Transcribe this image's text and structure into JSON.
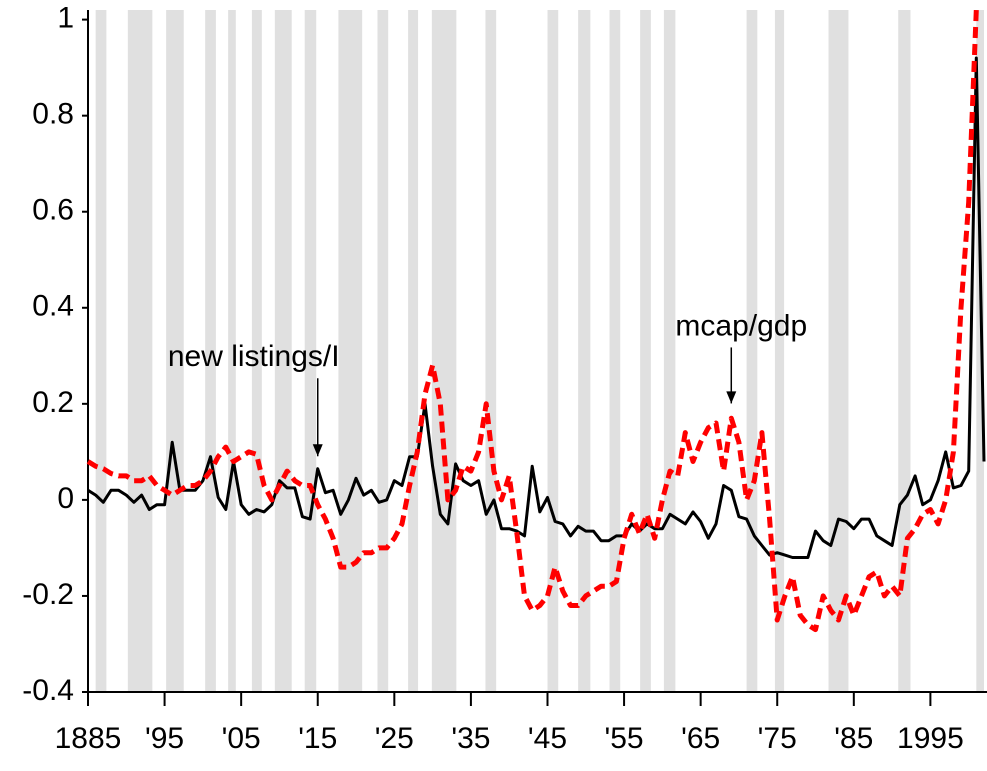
{
  "chart_data": {
    "type": "line",
    "x": [
      1885,
      1886,
      1887,
      1888,
      1889,
      1890,
      1891,
      1892,
      1893,
      1894,
      1895,
      1896,
      1897,
      1898,
      1899,
      1900,
      1901,
      1902,
      1903,
      1904,
      1905,
      1906,
      1907,
      1908,
      1909,
      1910,
      1911,
      1912,
      1913,
      1914,
      1915,
      1916,
      1917,
      1918,
      1919,
      1920,
      1921,
      1922,
      1923,
      1924,
      1925,
      1926,
      1927,
      1928,
      1929,
      1930,
      1931,
      1932,
      1933,
      1934,
      1935,
      1936,
      1937,
      1938,
      1939,
      1940,
      1941,
      1942,
      1943,
      1944,
      1945,
      1946,
      1947,
      1948,
      1949,
      1950,
      1951,
      1952,
      1953,
      1954,
      1955,
      1956,
      1957,
      1958,
      1959,
      1960,
      1961,
      1962,
      1963,
      1964,
      1965,
      1966,
      1967,
      1968,
      1969,
      1970,
      1971,
      1972,
      1973,
      1974,
      1975,
      1976,
      1977,
      1978,
      1979,
      1980,
      1981,
      1982,
      1983,
      1984,
      1985,
      1986,
      1987,
      1988,
      1989,
      1990,
      1991,
      1992,
      1993,
      1994,
      1995,
      1996,
      1997,
      1998,
      1999,
      2000,
      2001,
      2002
    ],
    "series": [
      {
        "color": "#000000",
        "dashed": false,
        "values": [
          0.02,
          0.01,
          -0.005,
          0.02,
          0.02,
          0.01,
          -0.005,
          0.01,
          -0.02,
          -0.01,
          -0.01,
          0.12,
          0.02,
          0.02,
          0.02,
          0.04,
          0.09,
          0.005,
          -0.02,
          0.08,
          -0.01,
          -0.03,
          -0.02,
          -0.025,
          -0.01,
          0.04,
          0.025,
          0.025,
          -0.035,
          -0.04,
          0.065,
          0.015,
          0.02,
          -0.03,
          0,
          0.045,
          0.01,
          0.02,
          -0.005,
          0,
          0.04,
          0.03,
          0.09,
          0.09,
          0.2,
          0.07,
          -0.03,
          -0.05,
          0.075,
          0.04,
          0.03,
          0.04,
          -0.03,
          0,
          -0.06,
          -0.06,
          -0.065,
          -0.075,
          0.07,
          -0.025,
          0.005,
          -0.045,
          -0.05,
          -0.075,
          -0.055,
          -0.065,
          -0.065,
          -0.085,
          -0.085,
          -0.075,
          -0.075,
          -0.05,
          -0.065,
          -0.05,
          -0.06,
          -0.06,
          -0.03,
          -0.04,
          -0.05,
          -0.025,
          -0.045,
          -0.08,
          -0.05,
          0.03,
          0.02,
          -0.035,
          -0.04,
          -0.075,
          -0.095,
          -0.115,
          -0.11,
          -0.115,
          -0.12,
          -0.12,
          -0.12,
          -0.065,
          -0.085,
          -0.095,
          -0.04,
          -0.045,
          -0.06,
          -0.04,
          -0.04,
          -0.075,
          -0.085,
          -0.095,
          -0.01,
          0.01,
          0.05,
          -0.01,
          0,
          0.04,
          0.1,
          0.025,
          0.03,
          0.06,
          0.92,
          0.08
        ]
      },
      {
        "color": "#ff0000",
        "dashed": true,
        "values": [
          0.08,
          0.07,
          0.065,
          0.055,
          0.05,
          0.05,
          0.04,
          0.04,
          0.05,
          0.03,
          0.02,
          0.01,
          0.02,
          0.03,
          0.03,
          0.04,
          0.06,
          0.09,
          0.11,
          0.08,
          0.09,
          0.1,
          0.095,
          0.03,
          0,
          0.03,
          0.06,
          0.04,
          0.03,
          0.03,
          -0.01,
          -0.04,
          -0.08,
          -0.14,
          -0.14,
          -0.13,
          -0.11,
          -0.11,
          -0.1,
          -0.1,
          -0.08,
          -0.05,
          0.03,
          0.1,
          0.22,
          0.28,
          0.2,
          0,
          0.02,
          0.07,
          0.06,
          0.1,
          0.2,
          0.06,
          0,
          0.05,
          -0.07,
          -0.2,
          -0.23,
          -0.22,
          -0.2,
          -0.14,
          -0.19,
          -0.22,
          -0.22,
          -0.2,
          -0.19,
          -0.18,
          -0.18,
          -0.17,
          -0.08,
          -0.03,
          -0.07,
          -0.03,
          -0.08,
          0,
          0.06,
          0.05,
          0.14,
          0.08,
          0.12,
          0.15,
          0.16,
          0.06,
          0.17,
          0.12,
          0,
          0.04,
          0.14,
          -0.04,
          -0.25,
          -0.2,
          -0.16,
          -0.24,
          -0.26,
          -0.27,
          -0.2,
          -0.23,
          -0.25,
          -0.2,
          -0.24,
          -0.2,
          -0.16,
          -0.15,
          -0.2,
          -0.18,
          -0.2,
          -0.08,
          -0.06,
          -0.03,
          -0.02,
          -0.05,
          0,
          0.1,
          0.4,
          0.62,
          1.02,
          null
        ]
      }
    ],
    "shaded_periods": [
      [
        1886,
        1887.4
      ],
      [
        1890.2,
        1893.4
      ],
      [
        1895.2,
        1897.5
      ],
      [
        1900.3,
        1901.7
      ],
      [
        1903.3,
        1904.3
      ],
      [
        1906.4,
        1907.7
      ],
      [
        1909.4,
        1911.6
      ],
      [
        1913.3,
        1914.8
      ],
      [
        1917.7,
        1920.8
      ],
      [
        1922.8,
        1924.2
      ],
      [
        1926.8,
        1928.1
      ],
      [
        1929.9,
        1933.1
      ],
      [
        1936.9,
        1938.3
      ],
      [
        1945,
        1946.4
      ],
      [
        1949,
        1950.6
      ],
      [
        1953.1,
        1954.5
      ],
      [
        1957.1,
        1958.5
      ],
      [
        1960.2,
        1961.7
      ],
      [
        1971,
        1972.4
      ],
      [
        1974.7,
        1975.9
      ],
      [
        1981.7,
        1984.3
      ],
      [
        1990.8,
        1992.4
      ],
      [
        2001,
        2002
      ]
    ],
    "shade_color": "#e0e0e0",
    "annotations": [
      {
        "text": "new listings/I",
        "x": 1915,
        "y": 0.07
      },
      {
        "text": "mcap/gdp",
        "x": 1969,
        "y": 0.18
      }
    ],
    "xlim": [
      1885,
      2002
    ],
    "ylim": [
      -0.4,
      1.02
    ],
    "xticks": [
      {
        "value": 1885,
        "label": "1885"
      },
      {
        "value": 1895,
        "label": "'95"
      },
      {
        "value": 1905,
        "label": "'05"
      },
      {
        "value": 1915,
        "label": "'15"
      },
      {
        "value": 1925,
        "label": "'25"
      },
      {
        "value": 1935,
        "label": "'35"
      },
      {
        "value": 1945,
        "label": "'45"
      },
      {
        "value": 1955,
        "label": "'55"
      },
      {
        "value": 1965,
        "label": "'65"
      },
      {
        "value": 1975,
        "label": "'75"
      },
      {
        "value": 1985,
        "label": "'85"
      },
      {
        "value": 1995,
        "label": "1995"
      }
    ],
    "yticks": [
      -0.4,
      -0.2,
      0,
      0.2,
      0.4,
      0.6,
      0.8,
      1
    ],
    "grid": false
  }
}
